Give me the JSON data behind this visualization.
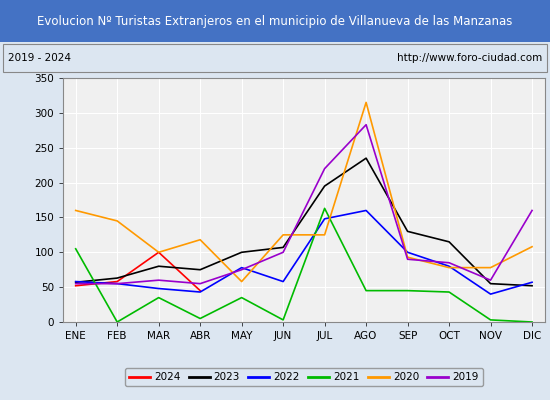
{
  "title": "Evolucion Nº Turistas Extranjeros en el municipio de Villanueva de las Manzanas",
  "subtitle_left": "2019 - 2024",
  "subtitle_right": "http://www.foro-ciudad.com",
  "months": [
    "ENE",
    "FEB",
    "MAR",
    "ABR",
    "MAY",
    "JUN",
    "JUL",
    "AGO",
    "SEP",
    "OCT",
    "NOV",
    "DIC"
  ],
  "series": {
    "2024": {
      "color": "#ff0000",
      "data": [
        52,
        58,
        100,
        45,
        null,
        null,
        null,
        null,
        null,
        null,
        null,
        null
      ]
    },
    "2023": {
      "color": "#000000",
      "data": [
        57,
        63,
        80,
        75,
        100,
        107,
        195,
        235,
        130,
        115,
        55,
        52
      ]
    },
    "2022": {
      "color": "#0000ff",
      "data": [
        58,
        55,
        48,
        43,
        78,
        58,
        148,
        160,
        100,
        80,
        40,
        57
      ]
    },
    "2021": {
      "color": "#00bb00",
      "data": [
        105,
        0,
        35,
        5,
        35,
        3,
        163,
        45,
        45,
        43,
        3,
        0
      ]
    },
    "2020": {
      "color": "#ff9900",
      "data": [
        160,
        145,
        100,
        118,
        58,
        125,
        125,
        315,
        93,
        78,
        78,
        108
      ]
    },
    "2019": {
      "color": "#9900cc",
      "data": [
        55,
        55,
        60,
        55,
        75,
        100,
        220,
        283,
        90,
        85,
        60,
        160
      ]
    }
  },
  "ylim": [
    0,
    350
  ],
  "yticks": [
    0,
    50,
    100,
    150,
    200,
    250,
    300,
    350
  ],
  "title_bg_color": "#4472c4",
  "title_font_color": "#ffffff",
  "plot_bg_color": "#f0f0f0",
  "outer_bg_color": "#dce6f1",
  "grid_color": "#ffffff",
  "legend_order": [
    "2024",
    "2023",
    "2022",
    "2021",
    "2020",
    "2019"
  ]
}
